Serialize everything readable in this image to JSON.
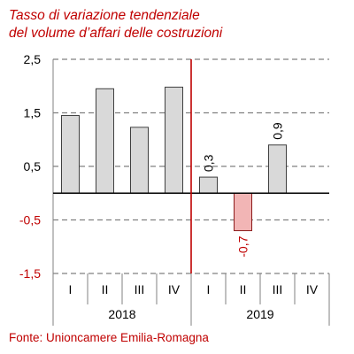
{
  "chart_data": {
    "type": "bar",
    "title_lines": [
      "Tasso di variazione tendenziale",
      "del volume d’affari delle costruzioni"
    ],
    "source": "Fonte: Unioncamere Emilia-Romagna",
    "ylim": [
      -1.5,
      2.5
    ],
    "yticks": [
      {
        "value": 2.5,
        "label": "2,5"
      },
      {
        "value": 1.5,
        "label": "1,5"
      },
      {
        "value": 0.5,
        "label": "0,5"
      },
      {
        "value": -0.5,
        "label": "-0,5"
      },
      {
        "value": -1.5,
        "label": "-1,5"
      }
    ],
    "categories": [
      "I",
      "II",
      "III",
      "IV",
      "I",
      "II",
      "III",
      "IV"
    ],
    "groups": [
      {
        "label": "2018",
        "start": 0,
        "count": 4
      },
      {
        "label": "2019",
        "start": 4,
        "count": 4
      }
    ],
    "values": [
      1.45,
      1.95,
      1.23,
      1.98,
      0.3,
      -0.7,
      0.9,
      null
    ],
    "data_labels": [
      "",
      "",
      "",
      "",
      "0,3",
      "-0,7",
      "0,9",
      ""
    ],
    "grid": true,
    "colors": {
      "bar_fill": "#d9d9d9",
      "bar_stroke": "#404040",
      "negative_fill": "#f2b5b5",
      "negative_stroke": "#8c1b1b",
      "negative_label": "#c00000",
      "divider": "#c00000",
      "title": "#c00000",
      "grid": "#808080"
    }
  }
}
